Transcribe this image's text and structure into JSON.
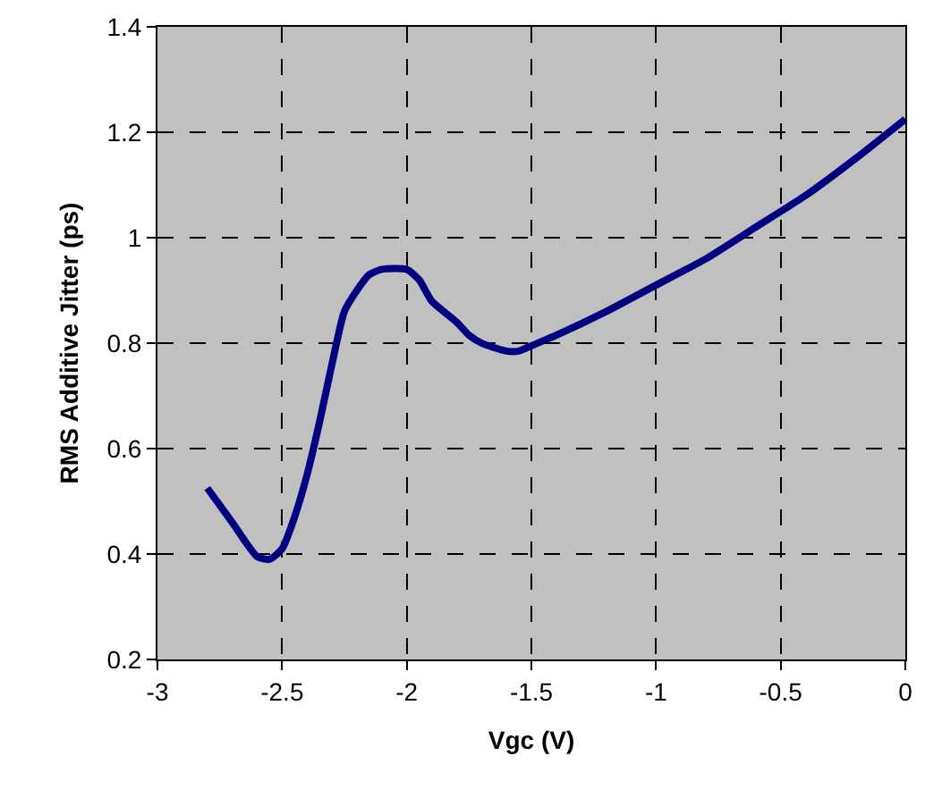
{
  "chart_data": {
    "type": "line",
    "xlabel": "Vgc (V)",
    "ylabel": "RMS Additive Jitter (ps)",
    "x": [
      -2.8,
      -2.7,
      -2.6,
      -2.55,
      -2.5,
      -2.45,
      -2.4,
      -2.35,
      -2.3,
      -2.25,
      -2.2,
      -2.15,
      -2.1,
      -2.0,
      -1.95,
      -1.9,
      -1.8,
      -1.75,
      -1.7,
      -1.6,
      -1.55,
      -1.5,
      -1.4,
      -1.2,
      -1.0,
      -0.8,
      -0.6,
      -0.4,
      -0.2,
      0
    ],
    "series": [
      {
        "color": "#000080",
        "values": [
          0.525,
          0.46,
          0.395,
          0.39,
          0.41,
          0.47,
          0.55,
          0.65,
          0.76,
          0.86,
          0.9,
          0.93,
          0.94,
          0.94,
          0.92,
          0.88,
          0.84,
          0.815,
          0.8,
          0.785,
          0.785,
          0.795,
          0.815,
          0.86,
          0.91,
          0.96,
          1.02,
          1.08,
          1.15,
          1.225
        ]
      }
    ],
    "xlim": [
      -3,
      0
    ],
    "xticks": [
      -3,
      -2.5,
      -2,
      -1.5,
      -1,
      -0.5,
      0
    ],
    "ylim": [
      0.2,
      1.4
    ],
    "yticks": [
      0.2,
      0.4,
      0.6,
      0.8,
      1,
      1.2,
      1.4
    ],
    "grid": true,
    "line_style": "solid",
    "marker": "none",
    "legend": false
  }
}
